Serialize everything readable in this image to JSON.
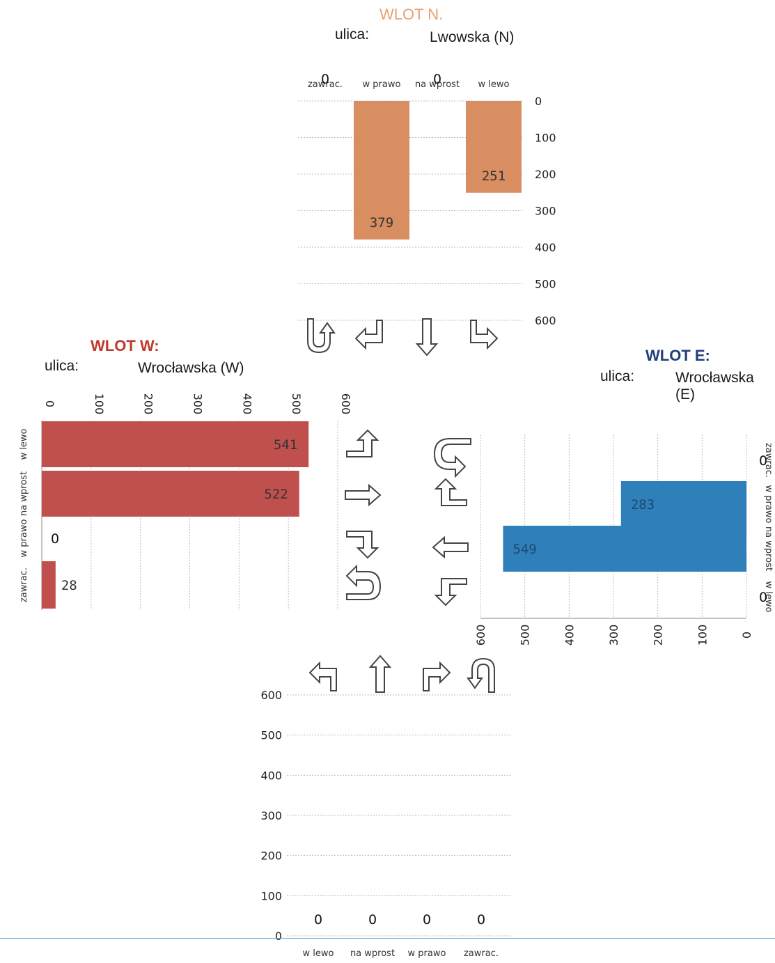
{
  "colors": {
    "north": "#d98e62",
    "west": "#c0504d",
    "east": "#2f7fba",
    "north_title": "#e8a06f",
    "west_title": "#c0392b",
    "east_title": "#1f3e7a"
  },
  "north": {
    "title": "WLOT N.",
    "ulica_label": "ulica:",
    "street": "Lwowska (N)"
  },
  "west": {
    "title": "WLOT W:",
    "ulica_label": "ulica:",
    "street": "Wrocławska (W)"
  },
  "east": {
    "title": "WLOT E:",
    "ulica_label": "ulica:",
    "street": "Wrocławska (E)"
  },
  "chart_data": [
    {
      "id": "north",
      "type": "bar",
      "orientation": "vertical-down",
      "categories": [
        "zawrac.",
        "w prawo",
        "na wprost",
        "w lewo"
      ],
      "values": [
        0,
        379,
        0,
        251
      ],
      "ylim": [
        0,
        600
      ],
      "ticks": [
        0,
        100,
        200,
        300,
        400,
        500,
        600
      ],
      "grid": true
    },
    {
      "id": "west",
      "type": "bar",
      "orientation": "horizontal",
      "categories": [
        "w lewo",
        "na wprost",
        "w prawo",
        "zawrac."
      ],
      "values": [
        541,
        522,
        0,
        28
      ],
      "xlim": [
        0,
        600
      ],
      "ticks": [
        0,
        100,
        200,
        300,
        400,
        500,
        600
      ],
      "grid": true
    },
    {
      "id": "east",
      "type": "bar",
      "orientation": "horizontal-reversed",
      "categories": [
        "zawrac.",
        "w prawo",
        "na wprost",
        "w lewo"
      ],
      "values": [
        0,
        283,
        549,
        0
      ],
      "xlim": [
        0,
        600
      ],
      "ticks": [
        0,
        100,
        200,
        300,
        400,
        500,
        600
      ],
      "grid": true
    },
    {
      "id": "south",
      "type": "bar",
      "orientation": "vertical",
      "categories": [
        "w lewo",
        "na wprost",
        "w prawo",
        "zawrac."
      ],
      "values": [
        0,
        0,
        0,
        0
      ],
      "ylim": [
        0,
        600
      ],
      "ticks": [
        0,
        100,
        200,
        300,
        400,
        500,
        600
      ],
      "grid": true
    }
  ]
}
